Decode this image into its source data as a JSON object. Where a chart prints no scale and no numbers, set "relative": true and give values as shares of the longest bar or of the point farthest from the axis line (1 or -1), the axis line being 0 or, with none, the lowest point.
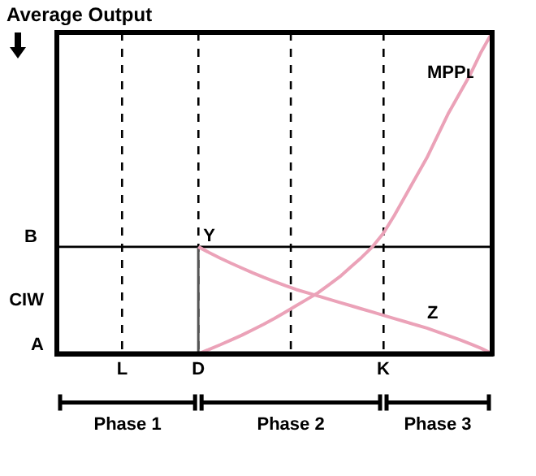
{
  "chart_data": {
    "type": "line",
    "ylabel": "Average Output",
    "relative": true,
    "categories": [
      null,
      null,
      null,
      null,
      null,
      null,
      "L",
      null,
      null,
      null,
      null,
      null,
      null,
      "D",
      null,
      null,
      null,
      null,
      null,
      null,
      null,
      null,
      null,
      null,
      null,
      null,
      null,
      null,
      null,
      null,
      "K",
      null,
      null,
      null,
      null,
      null,
      null,
      null,
      null,
      null,
      null
    ],
    "grid": "x",
    "line_style": "solid",
    "marker": "none",
    "series": [
      {
        "name": "MPPʟ",
        "color": "#eba2b8",
        "values": [
          null,
          null,
          null,
          null,
          null,
          null,
          null,
          null,
          null,
          null,
          null,
          null,
          null,
          0,
          0.014,
          0.028,
          0.043,
          0.058,
          0.075,
          0.092,
          0.11,
          0.13,
          0.15,
          0.17,
          0.19,
          0.215,
          0.24,
          0.27,
          0.3,
          0.333,
          0.375,
          0.43,
          0.49,
          0.55,
          0.61,
          0.68,
          0.75,
          0.81,
          0.87,
          0.94,
          1
        ]
      },
      {
        "name": "Z",
        "color": "#eba2b8",
        "values": [
          null,
          null,
          null,
          null,
          null,
          null,
          null,
          null,
          null,
          null,
          null,
          null,
          null,
          0.333,
          0.315,
          0.298,
          0.282,
          0.267,
          0.252,
          0.238,
          0.225,
          0.212,
          0.2,
          0.19,
          0.18,
          0.17,
          0.16,
          0.15,
          0.14,
          0.13,
          0.12,
          0.11,
          0.1,
          0.09,
          0.08,
          0.068,
          0.056,
          0.044,
          0.031,
          0.017,
          0
        ]
      }
    ],
    "ref_lines": [
      {
        "axis": "y",
        "value": 0.333,
        "label": "B",
        "color": "#000000"
      }
    ],
    "annotations": [
      {
        "text": "Y",
        "x": "D",
        "y": 0.333
      },
      "A",
      "CIW",
      "Phase 1",
      "Phase 2",
      "Phase 3"
    ]
  }
}
